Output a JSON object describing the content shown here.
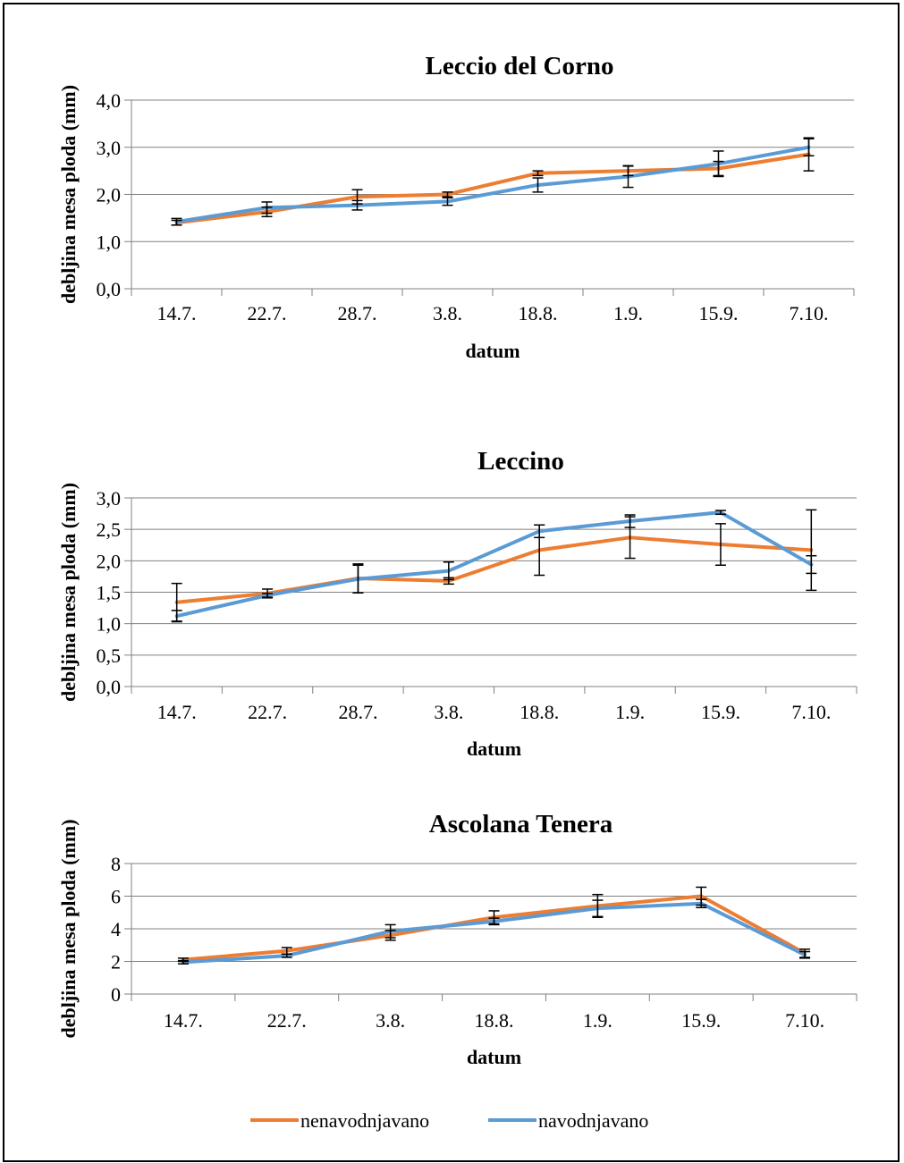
{
  "colors": {
    "nenavodnjavano": "#ED7D31",
    "navodnjavano": "#5B9BD5",
    "grid": "#808080",
    "axis": "#808080",
    "errorbar": "#000000"
  },
  "legend": {
    "items": [
      {
        "key": "nenavodnjavano",
        "label": "nenavodnjavano"
      },
      {
        "key": "navodnjavano",
        "label": "navodnjavano"
      }
    ]
  },
  "chart_data": [
    {
      "type": "line",
      "title": "Leccio del Corno",
      "xlabel": "datum",
      "ylabel": "debljina mesa ploda (mm)",
      "categories": [
        "14.7.",
        "22.7.",
        "28.7.",
        "3.8.",
        "18.8.",
        "1.9.",
        "15.9.",
        "7.10."
      ],
      "ylim": [
        0,
        4
      ],
      "yticks": [
        "0,0",
        "1,0",
        "2,0",
        "3,0",
        "4,0"
      ],
      "ytick_values": [
        0,
        1,
        2,
        3,
        4
      ],
      "grid": true,
      "series": [
        {
          "name": "nenavodnjavano",
          "values": [
            1.4,
            1.63,
            1.95,
            2.0,
            2.45,
            2.5,
            2.55,
            2.85
          ],
          "errors": [
            0.05,
            0.1,
            0.15,
            0.05,
            0.05,
            0.1,
            0.15,
            0.35
          ]
        },
        {
          "name": "navodnjavano",
          "values": [
            1.42,
            1.72,
            1.77,
            1.85,
            2.2,
            2.38,
            2.65,
            3.0
          ],
          "errors": [
            0.07,
            0.12,
            0.1,
            0.08,
            0.15,
            0.23,
            0.27,
            0.18
          ]
        }
      ]
    },
    {
      "type": "line",
      "title": "Leccino",
      "xlabel": "datum",
      "ylabel": "debljina mesa ploda (mm)",
      "categories": [
        "14.7.",
        "22.7.",
        "28.7.",
        "3.8.",
        "18.8.",
        "1.9.",
        "15.9.",
        "7.10."
      ],
      "ylim": [
        0,
        3
      ],
      "yticks": [
        "0,0",
        "0,5",
        "1,0",
        "1,5",
        "2,0",
        "2,5",
        "3,0"
      ],
      "ytick_values": [
        0,
        0.5,
        1,
        1.5,
        2,
        2.5,
        3
      ],
      "grid": true,
      "series": [
        {
          "name": "nenavodnjavano",
          "values": [
            1.34,
            1.48,
            1.72,
            1.68,
            2.17,
            2.37,
            2.26,
            2.17
          ],
          "errors": [
            0.3,
            0.07,
            0.23,
            0.05,
            0.4,
            0.33,
            0.33,
            0.64
          ]
        },
        {
          "name": "navodnjavano",
          "values": [
            1.12,
            1.45,
            1.71,
            1.84,
            2.47,
            2.63,
            2.77,
            1.94
          ],
          "errors": [
            0.09,
            0.03,
            0.22,
            0.14,
            0.1,
            0.1,
            0.03,
            0.14
          ]
        }
      ]
    },
    {
      "type": "line",
      "title": "Ascolana Tenera",
      "xlabel": "datum",
      "ylabel": "debljina mesa ploda (mm)",
      "categories": [
        "14.7.",
        "22.7.",
        "3.8.",
        "18.8.",
        "1.9.",
        "15.9.",
        "7.10."
      ],
      "ylim": [
        0,
        8
      ],
      "yticks": [
        "0",
        "2",
        "4",
        "6",
        "8"
      ],
      "ytick_values": [
        0,
        2,
        4,
        6,
        8
      ],
      "grid": true,
      "series": [
        {
          "name": "nenavodnjavano",
          "values": [
            2.1,
            2.65,
            3.6,
            4.7,
            5.4,
            6.0,
            2.5
          ],
          "errors": [
            0.1,
            0.2,
            0.3,
            0.4,
            0.7,
            0.55,
            0.25
          ]
        },
        {
          "name": "navodnjavano",
          "values": [
            1.95,
            2.35,
            3.85,
            4.45,
            5.25,
            5.55,
            2.4
          ],
          "errors": [
            0.1,
            0.1,
            0.4,
            0.2,
            0.5,
            0.25,
            0.2
          ]
        }
      ]
    }
  ]
}
